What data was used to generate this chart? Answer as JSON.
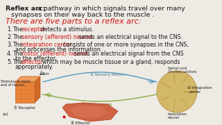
{
  "bg_color": "#eeebe5",
  "text_color": "#1a1a1a",
  "highlight_color": "#cc1111",
  "title_bold": "Reflex arc:",
  "title_rest": " a pathway in which signals travel over many",
  "title_rest2": "synapses on their way back to the muscle .",
  "subtitle": "There are five parts to a reflex arc:",
  "items": [
    [
      "1.",
      "The ",
      "receptor",
      " detects a stimulus."
    ],
    [
      "2.",
      "The ",
      "sensory (afferent) neuron",
      " sends an electrical signal to the CNS."
    ],
    [
      "3.",
      "The ",
      "integration center",
      " consists of one or more synapses in the CNS,",
      "and processes the information."
    ],
    [
      "4.",
      "The ",
      "motor (efferent) neuron",
      " sends an electrical signal from the CNS",
      "to the effector."
    ],
    [
      "5.",
      "The ",
      "effector",
      ", which may be muscle tissue or a gland, responds",
      "appropriately."
    ]
  ],
  "fs_title": 6.8,
  "fs_subtitle": 8.0,
  "fs_item": 5.8
}
